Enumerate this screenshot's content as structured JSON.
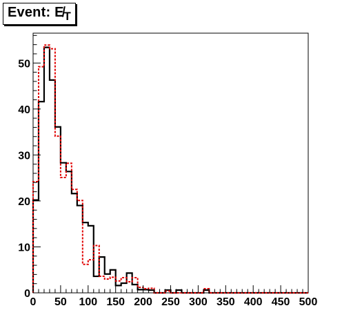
{
  "chart_data": {
    "type": "bar",
    "title": "Event: E̸",
    "title_subscript": "T",
    "xlim": [
      0,
      500
    ],
    "ylim": [
      0,
      56.5
    ],
    "bin_width": 10,
    "x_ticks": [
      "0",
      "50",
      "100",
      "150",
      "200",
      "250",
      "300",
      "350",
      "400",
      "450",
      "500"
    ],
    "y_ticks": [
      "0",
      "10",
      "20",
      "30",
      "40",
      "50"
    ],
    "series": [
      {
        "style": "solid",
        "color": "#000000",
        "values": [
          20.2,
          41.6,
          53.4,
          46.3,
          36.1,
          28.3,
          26.4,
          21.6,
          19.0,
          15.3,
          14.6,
          3.6,
          7.8,
          4.1,
          5.0,
          1.6,
          2.1,
          4.3,
          1.8,
          0.7,
          0.7,
          0.6,
          0,
          0,
          0.6,
          0,
          0.6,
          0,
          0,
          0,
          0,
          0.6,
          0,
          0,
          0,
          0,
          0,
          0,
          0,
          0,
          0,
          0,
          0,
          0,
          0,
          0,
          0,
          0,
          0,
          0
        ]
      },
      {
        "style": "dashed",
        "color": "#e00000",
        "values": [
          24.2,
          49.2,
          53.9,
          53.1,
          34.1,
          25.1,
          28.2,
          22.5,
          20.1,
          6.2,
          7.2,
          10.3,
          3.6,
          3.0,
          3.4,
          2.6,
          3.3,
          2.4,
          3.3,
          1.2,
          0.9,
          1.0,
          0,
          0,
          0.4,
          0,
          0,
          0,
          0,
          0,
          0,
          0.9,
          0,
          0,
          0,
          0,
          0,
          0,
          0,
          0,
          0,
          0,
          0,
          0,
          0,
          0,
          0,
          0,
          0,
          0
        ]
      }
    ]
  }
}
